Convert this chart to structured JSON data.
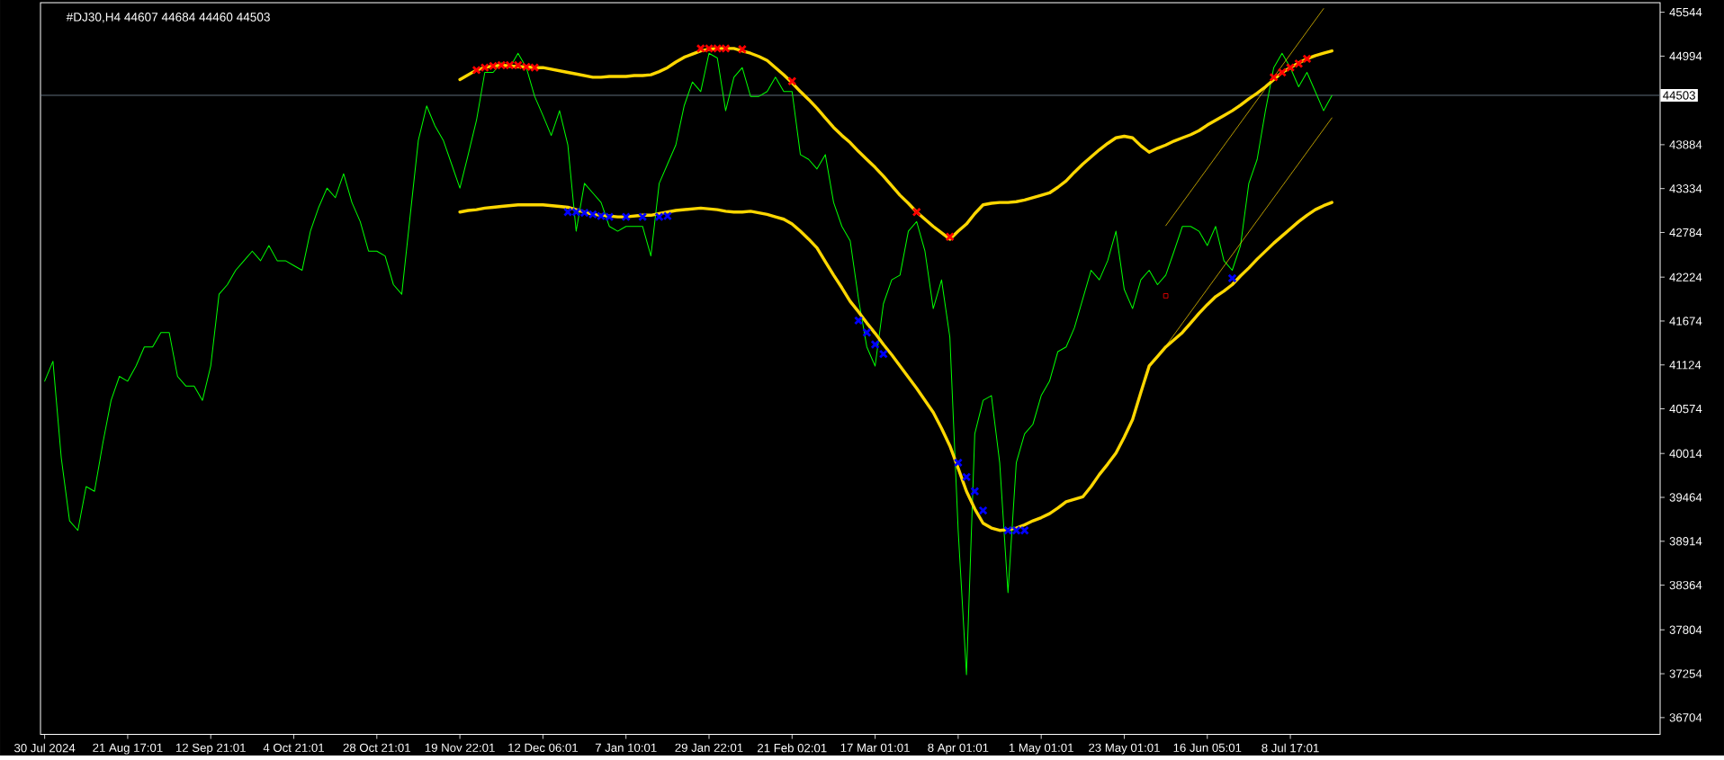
{
  "chart_data": {
    "type": "line",
    "title": "#DJ30,H4  44607 44684 44460 44503",
    "categories": [
      "30 Jul 2024",
      null,
      null,
      null,
      null,
      null,
      null,
      null,
      null,
      null,
      "21 Aug 17:01",
      null,
      null,
      null,
      null,
      null,
      null,
      null,
      null,
      null,
      "12 Sep 21:01",
      null,
      null,
      null,
      null,
      null,
      null,
      null,
      null,
      null,
      "4 Oct 21:01",
      null,
      null,
      null,
      null,
      null,
      null,
      null,
      null,
      null,
      "28 Oct 21:01",
      null,
      null,
      null,
      null,
      null,
      null,
      null,
      null,
      null,
      "19 Nov 22:01",
      null,
      null,
      null,
      null,
      null,
      null,
      null,
      null,
      null,
      "12 Dec 06:01",
      null,
      null,
      null,
      null,
      null,
      null,
      null,
      null,
      null,
      "7 Jan 10:01",
      null,
      null,
      null,
      null,
      null,
      null,
      null,
      null,
      null,
      "29 Jan 22:01",
      null,
      null,
      null,
      null,
      null,
      null,
      null,
      null,
      null,
      "21 Feb 02:01",
      null,
      null,
      null,
      null,
      null,
      null,
      null,
      null,
      null,
      "17 Mar 01:01",
      null,
      null,
      null,
      null,
      null,
      null,
      null,
      null,
      null,
      "8 Apr 01:01",
      null,
      null,
      null,
      null,
      null,
      null,
      null,
      null,
      null,
      "1 May 01:01",
      null,
      null,
      null,
      null,
      null,
      null,
      null,
      null,
      null,
      "23 May 01:01",
      null,
      null,
      null,
      null,
      null,
      null,
      null,
      null,
      null,
      "16 Jun 05:01",
      null,
      null,
      null,
      null,
      null,
      null,
      null,
      null,
      null,
      "8 Jul 17:01",
      null,
      null,
      null,
      null,
      null
    ],
    "ylim": [
      36493,
      45664
    ],
    "yticks": [
      36704,
      37254,
      37804,
      38364,
      38914,
      39464,
      40014,
      40574,
      41124,
      41674,
      42224,
      42784,
      43334,
      43884,
      44994,
      45544
    ],
    "ref_lines": [
      {
        "axis": "y",
        "value": 44503,
        "label": "44503",
        "color": "#778899"
      }
    ],
    "series": [
      {
        "color": "#00ff00",
        "values": [
          40920,
          41170,
          39960,
          39170,
          39050,
          39600,
          39540,
          40140,
          40680,
          40980,
          40920,
          41110,
          41350,
          41350,
          41530,
          41530,
          40980,
          40860,
          40860,
          40680,
          41110,
          42010,
          42130,
          42310,
          42430,
          42550,
          42430,
          42620,
          42430,
          42430,
          42370,
          42310,
          42800,
          43100,
          43340,
          43220,
          43520,
          43160,
          42920,
          42550,
          42550,
          42490,
          42130,
          42010,
          42980,
          43940,
          44370,
          44120,
          43940,
          43640,
          43340,
          43760,
          44190,
          44790,
          44790,
          44910,
          44850,
          45030,
          44850,
          44490,
          44250,
          44000,
          44310,
          43880,
          42800,
          43400,
          43280,
          43160,
          42860,
          42800,
          42860,
          42860,
          42860,
          42490,
          43400,
          43640,
          43880,
          44370,
          44670,
          44550,
          45030,
          44970,
          44310,
          44730,
          44850,
          44490,
          44490,
          44550,
          44730,
          44550,
          44550,
          43760,
          43700,
          43580,
          43760,
          43160,
          42860,
          42680,
          41950,
          41350,
          41110,
          41890,
          42190,
          42250,
          42800,
          42920,
          42550,
          41830,
          42190,
          41470,
          39050,
          37240,
          40260,
          40680,
          40740,
          39900,
          38270,
          39900,
          40260,
          40380,
          40740,
          40920,
          41290,
          41350,
          41590,
          41950,
          42310,
          42190,
          42430,
          42800,
          42070,
          41830,
          42190,
          42310,
          42130,
          42250,
          42550,
          42860,
          42860,
          42800,
          42620,
          42860,
          42430,
          42310,
          42620,
          43400,
          43700,
          44310,
          44850,
          45030,
          44850,
          44610,
          44790,
          44550,
          44310,
          44500
        ]
      },
      {
        "color": "#ffd700",
        "values": [
          null,
          null,
          null,
          null,
          null,
          null,
          null,
          null,
          null,
          null,
          null,
          null,
          null,
          null,
          null,
          null,
          null,
          null,
          null,
          null,
          null,
          null,
          null,
          null,
          null,
          null,
          null,
          null,
          null,
          null,
          null,
          null,
          null,
          null,
          null,
          null,
          null,
          null,
          null,
          null,
          null,
          null,
          null,
          null,
          null,
          null,
          null,
          null,
          null,
          null,
          44700,
          44760,
          44820,
          44850,
          44870,
          44880,
          44870,
          44860,
          44860,
          44850,
          44850,
          44830,
          44810,
          44790,
          44770,
          44750,
          44730,
          44730,
          44740,
          44740,
          44740,
          44750,
          44750,
          44760,
          44800,
          44850,
          44920,
          44980,
          45020,
          45060,
          45080,
          45090,
          45090,
          45090,
          45060,
          45030,
          44990,
          44940,
          44850,
          44760,
          44660,
          44550,
          44450,
          44340,
          44220,
          44100,
          44000,
          43910,
          43800,
          43700,
          43600,
          43490,
          43370,
          43250,
          43150,
          43040,
          42950,
          42860,
          42780,
          42700,
          42800,
          42890,
          43020,
          43130,
          43150,
          43160,
          43160,
          43170,
          43190,
          43220,
          43250,
          43280,
          43350,
          43430,
          43540,
          43640,
          43730,
          43820,
          43900,
          43970,
          43990,
          43970,
          43870,
          43790,
          43840,
          43880,
          43930,
          43970,
          44010,
          44060,
          44130,
          44190,
          44250,
          44310,
          44380,
          44460,
          44530,
          44610,
          44700,
          44790,
          44850,
          44910,
          44960,
          45000,
          45030,
          45060
        ]
      },
      {
        "color": "#ffd700",
        "values": [
          null,
          null,
          null,
          null,
          null,
          null,
          null,
          null,
          null,
          null,
          null,
          null,
          null,
          null,
          null,
          null,
          null,
          null,
          null,
          null,
          null,
          null,
          null,
          null,
          null,
          null,
          null,
          null,
          null,
          null,
          null,
          null,
          null,
          null,
          null,
          null,
          null,
          null,
          null,
          null,
          null,
          null,
          null,
          null,
          null,
          null,
          null,
          null,
          null,
          null,
          43040,
          43060,
          43070,
          43090,
          43100,
          43110,
          43120,
          43130,
          43130,
          43130,
          43130,
          43120,
          43110,
          43100,
          43070,
          43040,
          43010,
          43000,
          42990,
          42980,
          42980,
          42990,
          43000,
          43000,
          43020,
          43040,
          43060,
          43070,
          43080,
          43090,
          43080,
          43070,
          43050,
          43040,
          43040,
          43050,
          43030,
          43010,
          42980,
          42950,
          42890,
          42800,
          42700,
          42590,
          42420,
          42250,
          42090,
          41920,
          41790,
          41650,
          41520,
          41380,
          41250,
          41110,
          40970,
          40830,
          40680,
          40530,
          40330,
          40110,
          39830,
          39540,
          39320,
          39140,
          39080,
          39050,
          39060,
          39080,
          39120,
          39170,
          39210,
          39260,
          39330,
          39410,
          39440,
          39470,
          39600,
          39750,
          39880,
          40020,
          40220,
          40440,
          40780,
          41110,
          41230,
          41350,
          41440,
          41530,
          41650,
          41770,
          41880,
          41980,
          42050,
          42130,
          42240,
          42340,
          42450,
          42550,
          42650,
          42740,
          42830,
          42920,
          43000,
          43070,
          43120,
          43160
        ]
      },
      {
        "color": "#ffd700",
        "values": [
          null,
          null,
          null,
          null,
          null,
          null,
          null,
          null,
          null,
          null,
          null,
          null,
          null,
          null,
          null,
          null,
          null,
          null,
          null,
          null,
          null,
          null,
          null,
          null,
          null,
          null,
          null,
          null,
          null,
          null,
          null,
          null,
          null,
          null,
          null,
          null,
          null,
          null,
          null,
          null,
          null,
          null,
          null,
          null,
          null,
          null,
          null,
          null,
          null,
          null,
          null,
          null,
          null,
          null,
          null,
          null,
          null,
          null,
          null,
          null,
          null,
          null,
          null,
          null,
          null,
          null,
          null,
          null,
          null,
          null,
          null,
          null,
          null,
          null,
          null,
          null,
          null,
          null,
          null,
          null,
          null,
          null,
          null,
          null,
          null,
          null,
          null,
          null,
          null,
          null,
          null,
          null,
          null,
          null,
          null,
          null,
          null,
          null,
          null,
          null,
          null,
          null,
          null,
          null,
          null,
          null,
          null,
          null,
          null,
          null,
          null,
          null,
          null,
          null,
          null,
          null,
          null,
          null,
          null,
          null,
          null,
          null,
          null,
          null,
          null,
          null,
          null,
          null,
          null,
          null,
          null,
          null,
          null,
          null,
          null,
          42870,
          null,
          null,
          null,
          null,
          null,
          null,
          null,
          null,
          null,
          null,
          null,
          null,
          null,
          null,
          null,
          null,
          null,
          null,
          45590,
          null
        ]
      },
      {
        "color": "#ffd700",
        "values": [
          null,
          null,
          null,
          null,
          null,
          null,
          null,
          null,
          null,
          null,
          null,
          null,
          null,
          null,
          null,
          null,
          null,
          null,
          null,
          null,
          null,
          null,
          null,
          null,
          null,
          null,
          null,
          null,
          null,
          null,
          null,
          null,
          null,
          null,
          null,
          null,
          null,
          null,
          null,
          null,
          null,
          null,
          null,
          null,
          null,
          null,
          null,
          null,
          null,
          null,
          null,
          null,
          null,
          null,
          null,
          null,
          null,
          null,
          null,
          null,
          null,
          null,
          null,
          null,
          null,
          null,
          null,
          null,
          null,
          null,
          null,
          null,
          null,
          null,
          null,
          null,
          null,
          null,
          null,
          null,
          null,
          null,
          null,
          null,
          null,
          null,
          null,
          null,
          null,
          null,
          null,
          null,
          null,
          null,
          null,
          null,
          null,
          null,
          null,
          null,
          null,
          null,
          null,
          null,
          null,
          null,
          null,
          null,
          null,
          null,
          null,
          null,
          null,
          null,
          null,
          null,
          null,
          null,
          null,
          null,
          null,
          null,
          null,
          null,
          null,
          null,
          null,
          null,
          null,
          null,
          null,
          null,
          null,
          null,
          null,
          41360,
          null,
          null,
          null,
          null,
          null,
          null,
          null,
          null,
          null,
          null,
          null,
          null,
          null,
          null,
          null,
          null,
          null,
          null,
          null,
          44220
        ]
      },
      {
        "type": "scatter",
        "marker": "cross",
        "color": "#ff0000",
        "values": [
          null,
          null,
          null,
          null,
          null,
          null,
          null,
          null,
          null,
          null,
          null,
          null,
          null,
          null,
          null,
          null,
          null,
          null,
          null,
          null,
          null,
          null,
          null,
          null,
          null,
          null,
          null,
          null,
          null,
          null,
          null,
          null,
          null,
          null,
          null,
          null,
          null,
          null,
          null,
          null,
          null,
          null,
          null,
          null,
          null,
          null,
          null,
          null,
          null,
          null,
          null,
          null,
          44820,
          44850,
          44870,
          44880,
          44880,
          44880,
          44860,
          44850,
          null,
          null,
          null,
          null,
          null,
          null,
          null,
          null,
          null,
          null,
          null,
          null,
          null,
          null,
          null,
          null,
          null,
          null,
          null,
          45090,
          45090,
          45090,
          45090,
          null,
          45080,
          null,
          null,
          null,
          null,
          null,
          44680,
          null,
          null,
          null,
          null,
          null,
          null,
          null,
          null,
          null,
          null,
          null,
          null,
          null,
          null,
          43040,
          null,
          null,
          null,
          42730,
          null,
          null,
          null,
          null,
          null,
          null,
          null,
          null,
          null,
          null,
          null,
          null,
          null,
          null,
          null,
          null,
          null,
          null,
          null,
          null,
          null,
          null,
          null,
          null,
          null,
          null,
          null,
          null,
          null,
          null,
          null,
          null,
          null,
          null,
          null,
          null,
          null,
          null,
          44730,
          44790,
          44850,
          44900,
          44960,
          null,
          null,
          null
        ]
      },
      {
        "type": "scatter",
        "marker": "cross",
        "color": "#0000ff",
        "values": [
          null,
          null,
          null,
          null,
          null,
          null,
          null,
          null,
          null,
          null,
          null,
          null,
          null,
          null,
          null,
          null,
          null,
          null,
          null,
          null,
          null,
          null,
          null,
          null,
          null,
          null,
          null,
          null,
          null,
          null,
          null,
          null,
          null,
          null,
          null,
          null,
          null,
          null,
          null,
          null,
          null,
          null,
          null,
          null,
          null,
          null,
          null,
          null,
          null,
          null,
          null,
          null,
          null,
          null,
          null,
          null,
          null,
          null,
          null,
          null,
          null,
          null,
          null,
          43040,
          43040,
          43030,
          43010,
          42990,
          42980,
          null,
          42980,
          null,
          42980,
          null,
          42980,
          42990,
          null,
          null,
          null,
          null,
          null,
          null,
          null,
          null,
          null,
          null,
          null,
          null,
          null,
          null,
          null,
          null,
          null,
          null,
          null,
          null,
          null,
          null,
          41680,
          41530,
          41380,
          41260,
          null,
          null,
          null,
          null,
          null,
          null,
          null,
          null,
          39900,
          39720,
          39540,
          39300,
          null,
          null,
          39050,
          39050,
          39050,
          null,
          null,
          null,
          null,
          null,
          null,
          null,
          null,
          null,
          null,
          null,
          null,
          null,
          null,
          null,
          null,
          null,
          null,
          null,
          null,
          null,
          null,
          null,
          null,
          42210,
          null,
          null,
          null,
          null,
          null,
          null,
          null,
          null,
          null,
          null,
          null,
          null
        ]
      },
      {
        "type": "scatter",
        "marker": "square",
        "color": "#ff0000",
        "values": [
          null,
          null,
          null,
          null,
          null,
          null,
          null,
          null,
          null,
          null,
          null,
          null,
          null,
          null,
          null,
          null,
          null,
          null,
          null,
          null,
          null,
          null,
          null,
          null,
          null,
          null,
          null,
          null,
          null,
          null,
          null,
          null,
          null,
          null,
          null,
          null,
          null,
          null,
          null,
          null,
          null,
          null,
          null,
          null,
          null,
          null,
          null,
          null,
          null,
          null,
          null,
          null,
          null,
          null,
          null,
          null,
          null,
          null,
          null,
          null,
          null,
          null,
          null,
          null,
          null,
          null,
          null,
          null,
          null,
          null,
          null,
          null,
          null,
          null,
          null,
          null,
          null,
          null,
          null,
          null,
          null,
          null,
          null,
          null,
          null,
          null,
          null,
          null,
          null,
          null,
          null,
          null,
          null,
          null,
          null,
          null,
          null,
          null,
          null,
          null,
          null,
          null,
          null,
          null,
          null,
          null,
          null,
          null,
          null,
          null,
          null,
          null,
          null,
          null,
          null,
          null,
          null,
          null,
          null,
          null,
          null,
          null,
          null,
          null,
          null,
          null,
          null,
          null,
          null,
          null,
          null,
          null,
          null,
          null,
          null,
          41990,
          null,
          null,
          null,
          null,
          null,
          null,
          null,
          null,
          null,
          null,
          null,
          null,
          null,
          null,
          null,
          null,
          null,
          null,
          null,
          null
        ]
      }
    ]
  }
}
